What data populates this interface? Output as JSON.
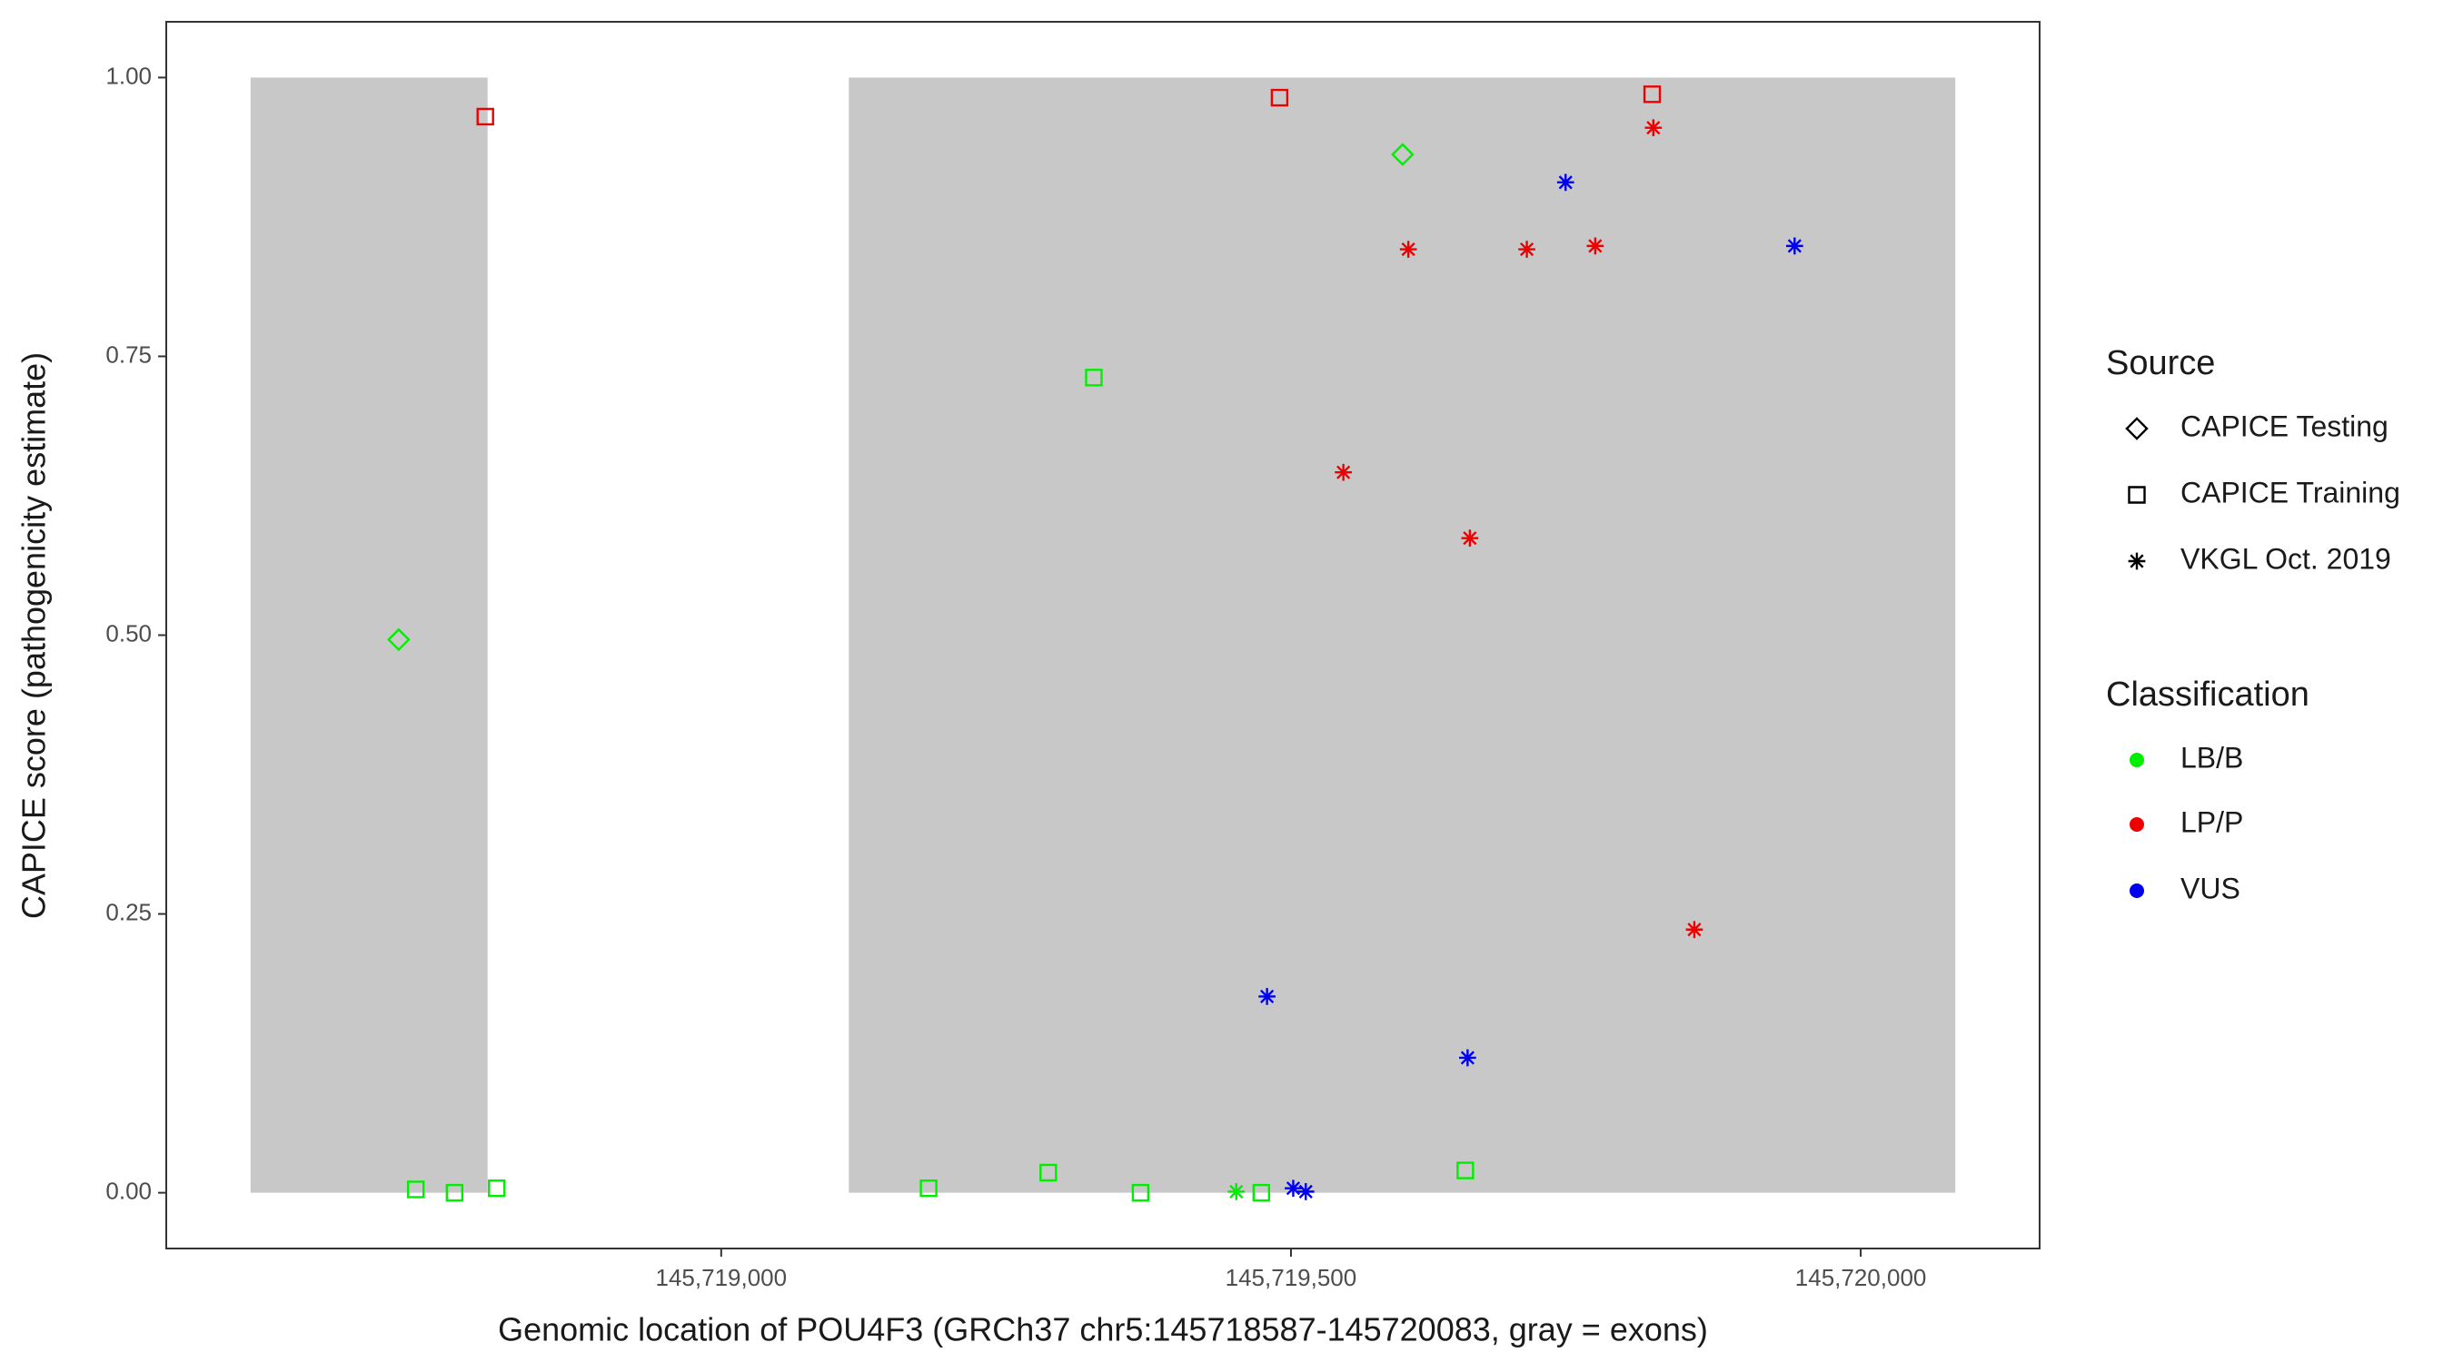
{
  "chart_data": {
    "type": "scatter",
    "xlabel": "Genomic location of POU4F3 (GRCh37 chr5:145718587-145720083, gray = exons)",
    "ylabel": "CAPICE score (pathogenicity estimate)",
    "xlim": [
      145718513,
      145720157
    ],
    "ylim": [
      -0.05,
      1.05
    ],
    "xticks": [
      {
        "value": 145719000,
        "label": "145,719,000"
      },
      {
        "value": 145719500,
        "label": "145,719,500"
      },
      {
        "value": 145720000,
        "label": "145,720,000"
      }
    ],
    "yticks": [
      {
        "value": 0,
        "label": "0.00"
      },
      {
        "value": 0.25,
        "label": "0.25"
      },
      {
        "value": 0.5,
        "label": "0.50"
      },
      {
        "value": 0.75,
        "label": "0.75"
      },
      {
        "value": 1,
        "label": "1.00"
      }
    ],
    "exons": [
      {
        "start": 145718587,
        "end": 145718795,
        "ymin": 0,
        "ymax": 1,
        "color": "#c8c8c8"
      },
      {
        "start": 145719112,
        "end": 145720083,
        "ymin": 0,
        "ymax": 1,
        "color": "#c8c8c8"
      }
    ],
    "legends": [
      {
        "title": "Source",
        "entries": [
          {
            "name": "CAPICE Testing",
            "shape": "diamond"
          },
          {
            "name": "CAPICE Training",
            "shape": "square"
          },
          {
            "name": "VKGL Oct. 2019",
            "shape": "asterisk"
          }
        ]
      },
      {
        "title": "Classification",
        "entries": [
          {
            "name": "LB/B",
            "color": "#00ee00"
          },
          {
            "name": "LP/P",
            "color": "#ee0000"
          },
          {
            "name": "VUS",
            "color": "#0000ee"
          }
        ]
      }
    ],
    "series": [
      {
        "source": "CAPICE Training",
        "classification": "LB/B",
        "x": [
          145718732,
          145718766,
          145718803,
          145719182,
          145719287,
          145719327,
          145719368,
          145719474,
          145719653
        ],
        "values": [
          0.003,
          0.0,
          0.004,
          0.004,
          0.018,
          0.731,
          0.0,
          0.0,
          0.02
        ]
      },
      {
        "source": "CAPICE Testing",
        "classification": "LB/B",
        "x": [
          145718717,
          145719598
        ],
        "values": [
          0.496,
          0.931
        ]
      },
      {
        "source": "VKGL Oct. 2019",
        "classification": "LB/B",
        "x": [
          145719452
        ],
        "values": [
          0.001
        ]
      },
      {
        "source": "CAPICE Training",
        "classification": "LP/P",
        "x": [
          145718793,
          145719490,
          145719817
        ],
        "values": [
          0.965,
          0.982,
          0.985
        ]
      },
      {
        "source": "VKGL Oct. 2019",
        "classification": "LP/P",
        "x": [
          145719546,
          145719603,
          145719657,
          145719707,
          145719767,
          145719818,
          145719854
        ],
        "values": [
          0.646,
          0.846,
          0.587,
          0.846,
          0.849,
          0.955,
          0.236
        ]
      },
      {
        "source": "VKGL Oct. 2019",
        "classification": "VUS",
        "x": [
          145719479,
          145719502,
          145719513,
          145719655,
          145719741,
          145719942
        ],
        "values": [
          0.176,
          0.004,
          0.001,
          0.121,
          0.906,
          0.849
        ]
      }
    ]
  }
}
